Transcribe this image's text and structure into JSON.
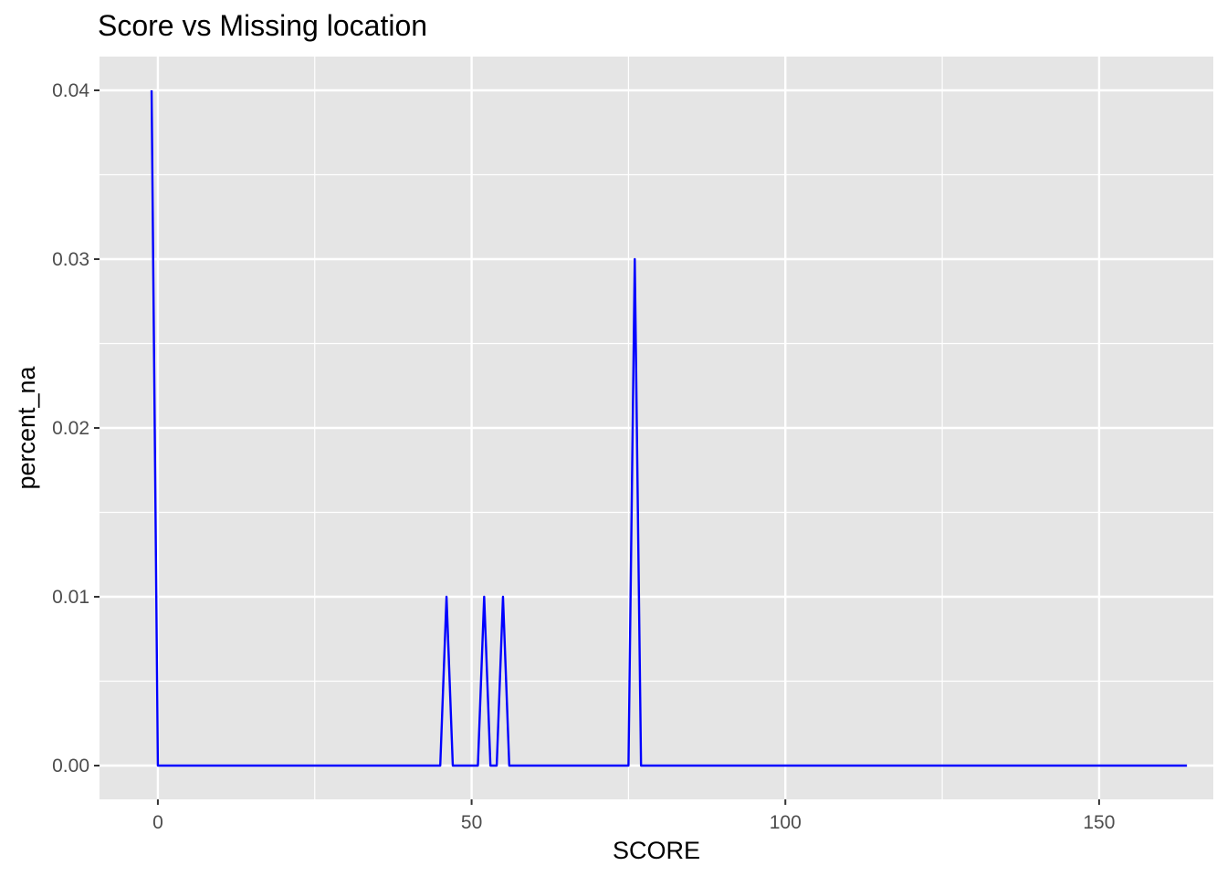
{
  "chart_data": {
    "type": "line",
    "title": "Score vs Missing location",
    "xlabel": "SCORE",
    "ylabel": "percent_na",
    "xlim": [
      -9.3,
      168.2
    ],
    "ylim": [
      -0.002,
      0.042
    ],
    "x_ticks": [
      0,
      50,
      100,
      150
    ],
    "y_ticks": [
      0.0,
      0.01,
      0.02,
      0.03,
      0.04
    ],
    "x_tick_labels": [
      "0",
      "50",
      "100",
      "150"
    ],
    "y_tick_labels": [
      "0.00",
      "0.01",
      "0.02",
      "0.03",
      "0.04"
    ],
    "x_minor_ticks": [
      25,
      75,
      125
    ],
    "y_minor_ticks": [
      0.005,
      0.015,
      0.025,
      0.035
    ],
    "grid": true,
    "legend": "none",
    "colors": {
      "panel_bg": "#e5e5e5",
      "grid": "#ffffff",
      "line": "#0000ff",
      "tick_text": "#4d4d4d",
      "tick_mark": "#333333"
    },
    "series": [
      {
        "x": [
          -1,
          0,
          45,
          46,
          47,
          51,
          52,
          53,
          54,
          55,
          56,
          75,
          76,
          77,
          164
        ],
        "y": [
          0.04,
          0,
          0,
          0.01,
          0,
          0,
          0.01,
          0,
          0,
          0.01,
          0,
          0,
          0.03,
          0,
          0
        ]
      }
    ]
  }
}
